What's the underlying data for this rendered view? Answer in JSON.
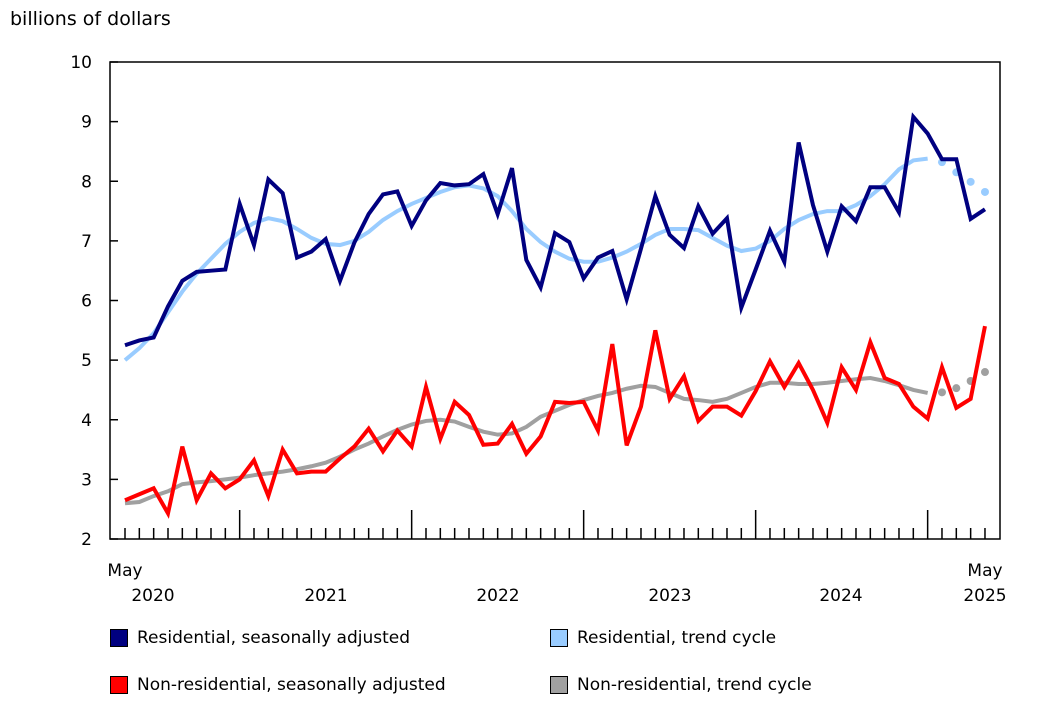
{
  "chart_data": {
    "type": "line",
    "ylabel": "billions of dollars",
    "ylim": [
      2,
      10
    ],
    "yticks": [
      "2",
      "3",
      "4",
      "5",
      "6",
      "7",
      "8",
      "9",
      "10"
    ],
    "x_start": "May 2020",
    "x_end": "May 2025",
    "xtick_labels": {
      "start_month": "May",
      "start_year": "2020",
      "years": [
        "2021",
        "2022",
        "2023",
        "2024"
      ],
      "end_month": "May",
      "end_year": "2025"
    },
    "grid": false,
    "legend_placement": "bottom",
    "series": [
      {
        "name": "Residential, seasonally adjusted",
        "color": "#000080",
        "style": "solid",
        "values": [
          5.25,
          5.33,
          5.38,
          5.9,
          6.33,
          6.48,
          6.5,
          6.52,
          7.62,
          6.93,
          8.03,
          7.8,
          6.72,
          6.82,
          7.03,
          6.33,
          6.97,
          7.45,
          7.78,
          7.83,
          7.25,
          7.68,
          7.97,
          7.93,
          7.95,
          8.12,
          7.45,
          8.22,
          6.68,
          6.22,
          7.13,
          6.98,
          6.37,
          6.72,
          6.83,
          6.02,
          6.87,
          7.75,
          7.1,
          6.88,
          7.58,
          7.12,
          7.38,
          5.88,
          6.52,
          7.17,
          6.65,
          8.65,
          7.6,
          6.82,
          7.58,
          7.33,
          7.9,
          7.9,
          7.48,
          9.08,
          8.8,
          8.37,
          8.37,
          7.37,
          7.53
        ]
      },
      {
        "name": "Residential, trend cycle",
        "color": "#99ccff",
        "style": "solid-then-dotted",
        "values": [
          5.0,
          5.2,
          5.45,
          5.8,
          6.15,
          6.45,
          6.7,
          6.95,
          7.15,
          7.3,
          7.38,
          7.33,
          7.2,
          7.05,
          6.95,
          6.93,
          7.0,
          7.15,
          7.35,
          7.5,
          7.62,
          7.72,
          7.82,
          7.9,
          7.93,
          7.88,
          7.75,
          7.5,
          7.2,
          6.98,
          6.82,
          6.7,
          6.65,
          6.65,
          6.72,
          6.82,
          6.95,
          7.1,
          7.2,
          7.2,
          7.18,
          7.05,
          6.92,
          6.83,
          6.87,
          7.0,
          7.2,
          7.35,
          7.45,
          7.5,
          7.5,
          7.6,
          7.75,
          7.95,
          8.2,
          8.35,
          8.38,
          8.32,
          8.15,
          7.99,
          7.82
        ],
        "dotted_from": "Feb 2025"
      },
      {
        "name": "Non-residential, seasonally adjusted",
        "color": "#ff0000",
        "style": "solid",
        "values": [
          2.65,
          2.75,
          2.85,
          2.43,
          3.55,
          2.65,
          3.1,
          2.85,
          3.0,
          3.32,
          2.72,
          3.5,
          3.1,
          3.13,
          3.13,
          3.35,
          3.55,
          3.85,
          3.47,
          3.82,
          3.55,
          4.55,
          3.68,
          4.3,
          4.08,
          3.58,
          3.6,
          3.93,
          3.43,
          3.72,
          4.3,
          4.28,
          4.3,
          3.82,
          5.27,
          3.57,
          4.22,
          5.5,
          4.35,
          4.73,
          3.98,
          4.22,
          4.22,
          4.07,
          4.48,
          4.98,
          4.55,
          4.95,
          4.5,
          3.95,
          4.88,
          4.5,
          5.3,
          4.7,
          4.6,
          4.22,
          4.02,
          4.88,
          4.2,
          4.35,
          5.57
        ]
      },
      {
        "name": "Non-residential, trend cycle",
        "color": "#a0a0a0",
        "style": "solid-then-dotted",
        "values": [
          2.6,
          2.62,
          2.72,
          2.8,
          2.92,
          2.95,
          2.97,
          3.0,
          3.03,
          3.07,
          3.1,
          3.13,
          3.17,
          3.22,
          3.28,
          3.38,
          3.5,
          3.6,
          3.72,
          3.83,
          3.92,
          3.98,
          4.0,
          3.97,
          3.88,
          3.8,
          3.75,
          3.77,
          3.88,
          4.05,
          4.15,
          4.25,
          4.33,
          4.4,
          4.45,
          4.52,
          4.57,
          4.55,
          4.45,
          4.35,
          4.33,
          4.3,
          4.35,
          4.45,
          4.55,
          4.62,
          4.62,
          4.6,
          4.6,
          4.62,
          4.65,
          4.68,
          4.7,
          4.65,
          4.58,
          4.5,
          4.45,
          4.46,
          4.53,
          4.65,
          4.8
        ],
        "dotted_from": "Feb 2025"
      }
    ]
  }
}
